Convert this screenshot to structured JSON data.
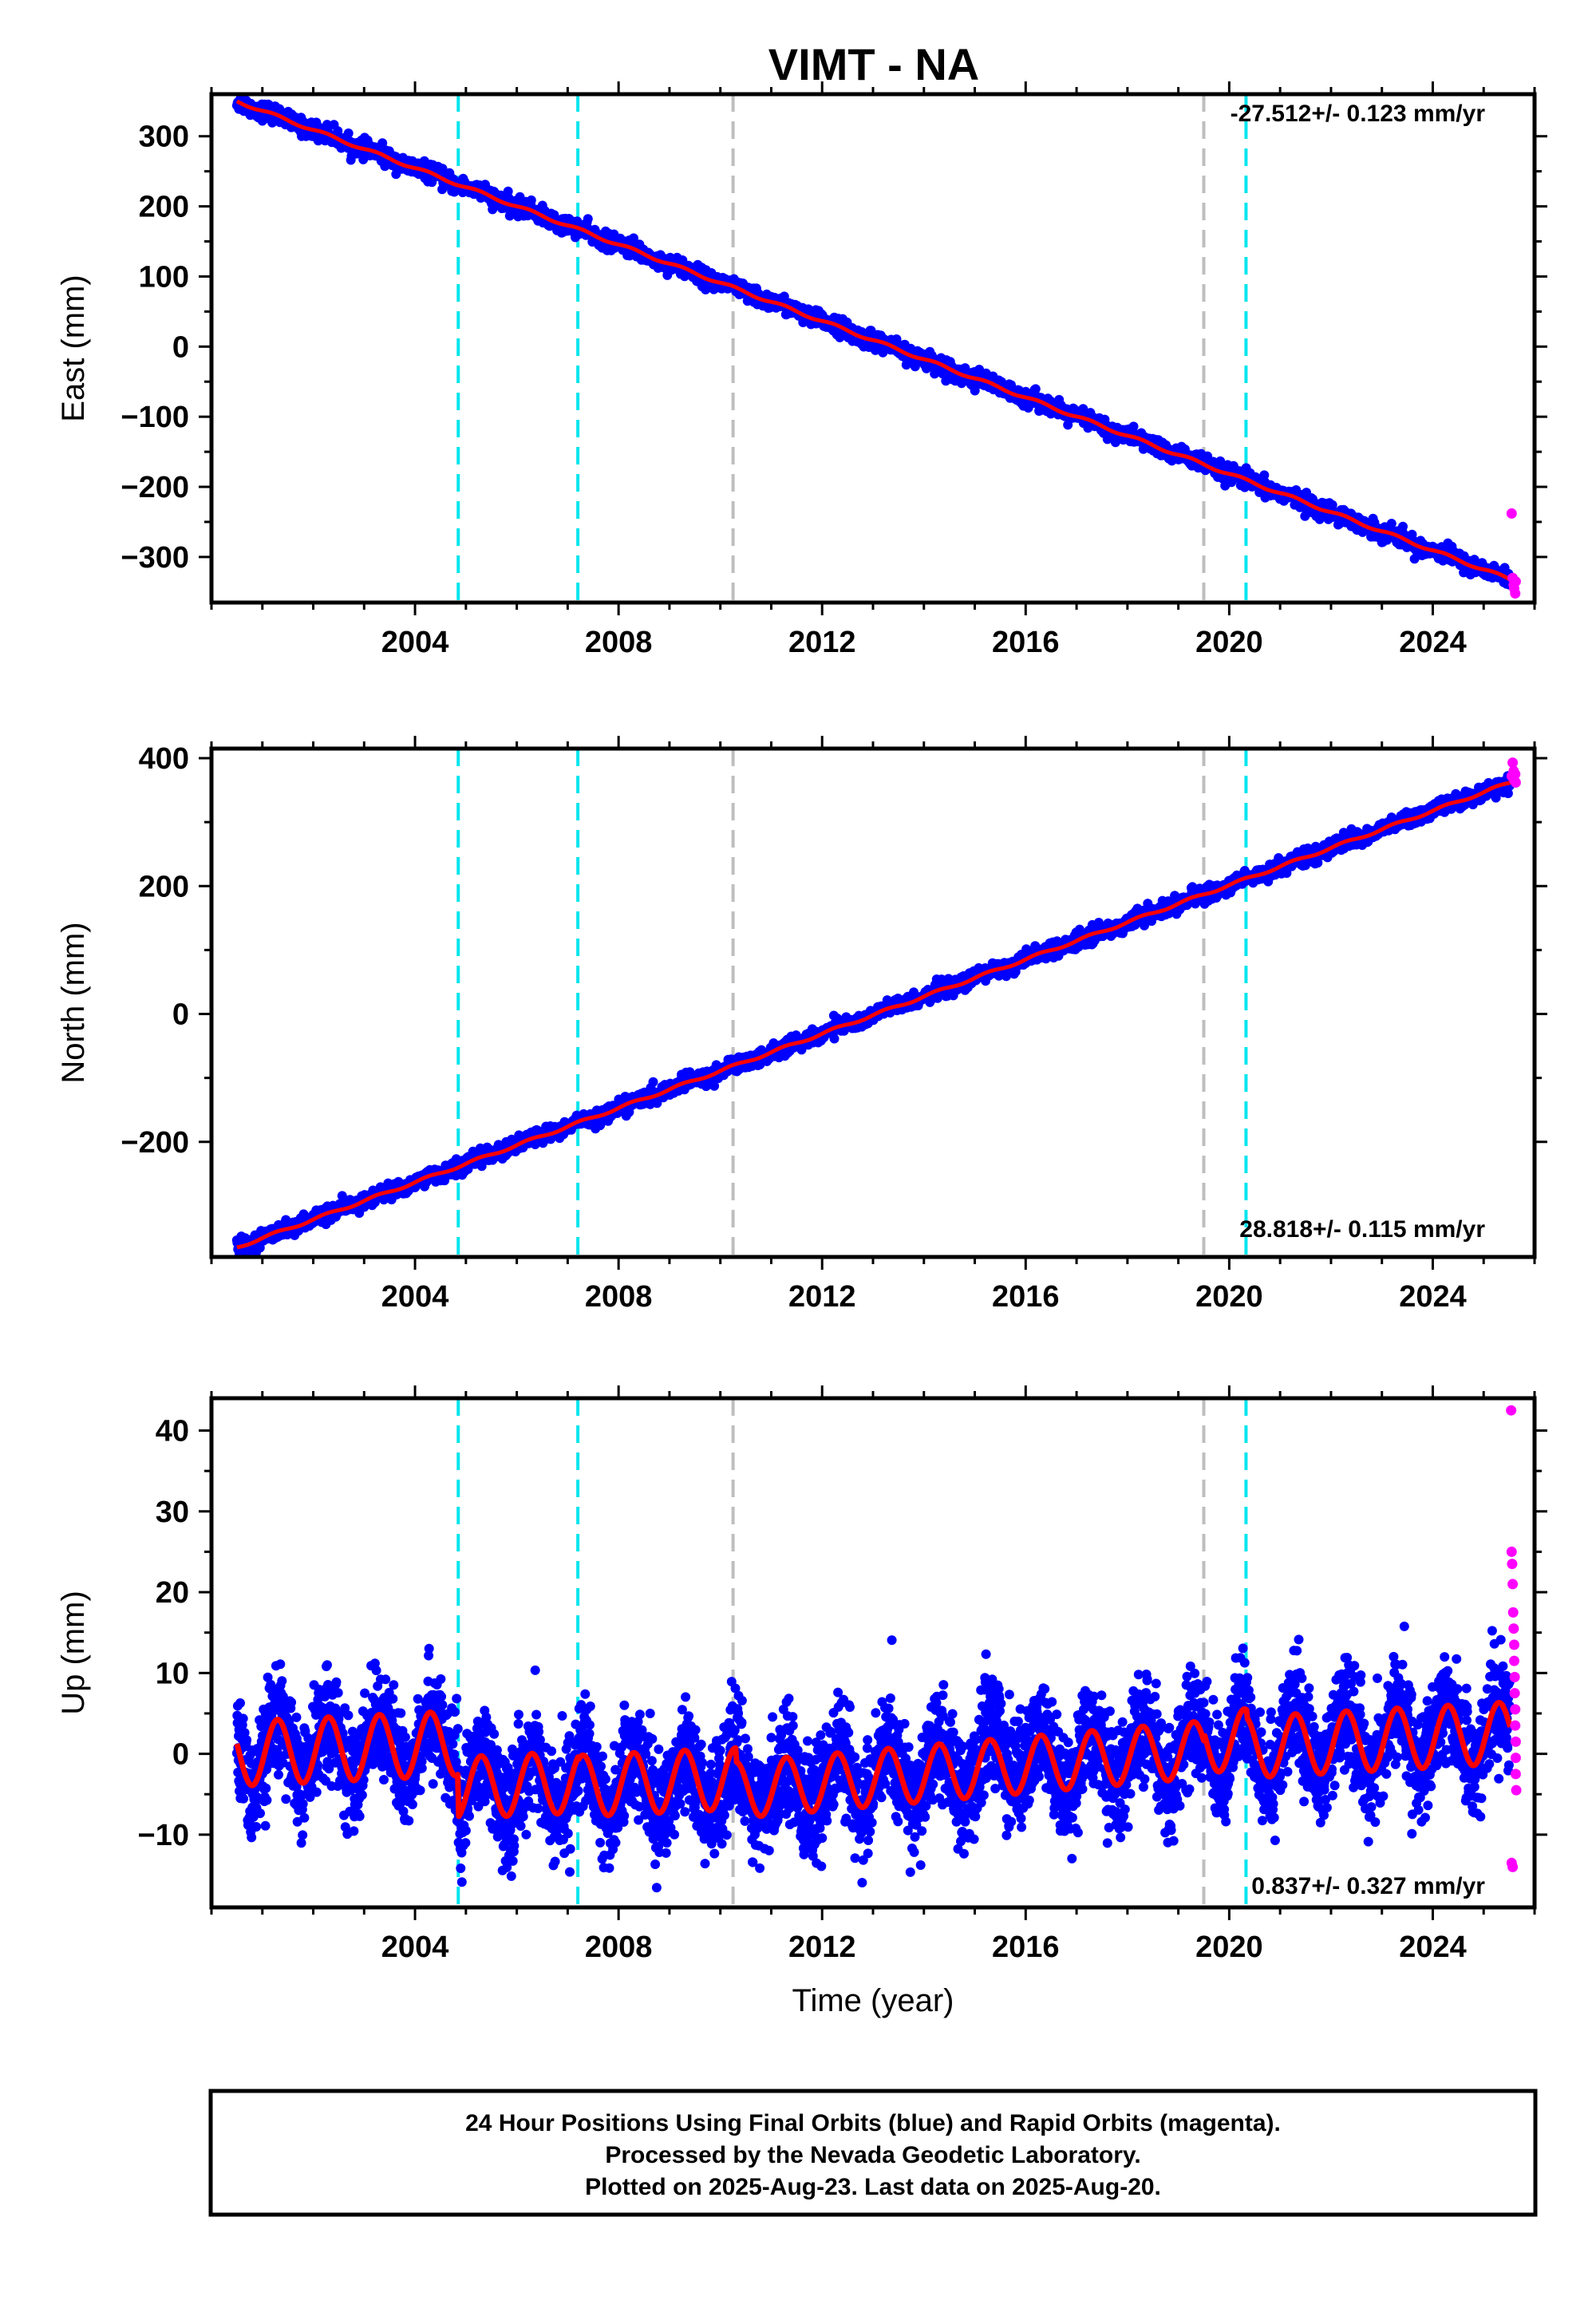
{
  "figure": {
    "title": "VIMT - NA",
    "footer": [
      "24 Hour Positions Using Final Orbits (blue) and Rapid Orbits (magenta).",
      "Processed by the Nevada Geodetic Laboratory.",
      "Plotted on 2025-Aug-23. Last data on 2025-Aug-20."
    ]
  },
  "colors": {
    "final_orbits": "#0000ff",
    "rapid_orbits": "#ff00ff",
    "model_fit": "#ff0000",
    "event_cyan": "#00e5ee",
    "event_gray": "#bebebe"
  },
  "chart_data": [
    {
      "type": "scatter",
      "ylabel": "East (mm)",
      "xlabel": "",
      "xlim": [
        2000.0,
        2026.0
      ],
      "ylim": [
        -365,
        360
      ],
      "x_ticks": [
        2004,
        2008,
        2012,
        2016,
        2020,
        2024
      ],
      "y_ticks": [
        -300,
        -200,
        -100,
        0,
        100,
        200,
        300
      ],
      "rate_label": "-27.512+/- 0.123 mm/yr",
      "rate_position": "top-right",
      "grid": false,
      "data_span": [
        2000.5,
        2025.63
      ],
      "trend": {
        "start": 350,
        "end": -335
      },
      "seasonal_amplitude": 2,
      "scatter_noise": 6,
      "rapid_points": [
        {
          "x": 2025.55,
          "y": -238
        },
        {
          "x": 2025.57,
          "y": -330
        },
        {
          "x": 2025.59,
          "y": -340
        },
        {
          "x": 2025.6,
          "y": -345
        },
        {
          "x": 2025.62,
          "y": -352
        },
        {
          "x": 2025.63,
          "y": -335
        }
      ],
      "series": [
        {
          "name": "Final Orbits (blue)"
        },
        {
          "name": "Rapid Orbits (magenta)"
        }
      ]
    },
    {
      "type": "scatter",
      "ylabel": "North (mm)",
      "xlabel": "",
      "xlim": [
        2000.0,
        2026.0
      ],
      "ylim": [
        -380,
        415
      ],
      "x_ticks": [
        2004,
        2008,
        2012,
        2016,
        2020,
        2024
      ],
      "y_ticks": [
        -200,
        0,
        200,
        400
      ],
      "rate_label": "28.818+/- 0.115 mm/yr",
      "rate_position": "bottom-right",
      "grid": false,
      "data_span": [
        2000.5,
        2025.63
      ],
      "trend": {
        "start": -365,
        "end": 365
      },
      "seasonal_amplitude": 2,
      "scatter_noise": 6,
      "rapid_points": [
        {
          "x": 2025.55,
          "y": 372
        },
        {
          "x": 2025.57,
          "y": 393
        },
        {
          "x": 2025.59,
          "y": 380
        },
        {
          "x": 2025.6,
          "y": 366
        },
        {
          "x": 2025.62,
          "y": 375
        },
        {
          "x": 2025.63,
          "y": 362
        }
      ],
      "series": [
        {
          "name": "Final Orbits (blue)"
        },
        {
          "name": "Rapid Orbits (magenta)"
        }
      ]
    },
    {
      "type": "scatter",
      "ylabel": "Up (mm)",
      "xlabel": "Time (year)",
      "xlim": [
        2000.0,
        2026.0
      ],
      "ylim": [
        -19,
        44
      ],
      "x_ticks": [
        2004,
        2008,
        2012,
        2016,
        2020,
        2024
      ],
      "y_ticks": [
        -10,
        0,
        10,
        20,
        30,
        40
      ],
      "rate_label": "0.837+/- 0.327 mm/yr",
      "rate_position": "bottom-right",
      "grid": false,
      "data_span": [
        2000.5,
        2025.63
      ],
      "model_segments": [
        {
          "start": 2000.5,
          "end": 2004.85,
          "offset": 0.0,
          "slope": 0.3,
          "amplitude": 4.0
        },
        {
          "start": 2004.85,
          "end": 2007.2,
          "offset": -4.2,
          "slope": 0.3,
          "amplitude": 3.8
        },
        {
          "start": 2007.2,
          "end": 2010.3,
          "offset": -4.0,
          "slope": 0.3,
          "amplitude": 3.8
        },
        {
          "start": 2010.3,
          "end": 2019.5,
          "offset": -4.5,
          "slope": 0.55,
          "amplitude": 3.5
        },
        {
          "start": 2019.5,
          "end": 2020.35,
          "offset": 1.5,
          "slope": 0.3,
          "amplitude": 3.8
        },
        {
          "start": 2020.35,
          "end": 2025.63,
          "offset": 0.8,
          "slope": 0.35,
          "amplitude": 3.8
        }
      ],
      "scatter_noise": 3.2,
      "rapid_points": [
        {
          "x": 2025.54,
          "y": 42.5
        },
        {
          "x": 2025.55,
          "y": 25
        },
        {
          "x": 2025.56,
          "y": 23.5
        },
        {
          "x": 2025.57,
          "y": 21
        },
        {
          "x": 2025.58,
          "y": 17.5
        },
        {
          "x": 2025.59,
          "y": 15.5
        },
        {
          "x": 2025.6,
          "y": 13.5
        },
        {
          "x": 2025.6,
          "y": 11.5
        },
        {
          "x": 2025.61,
          "y": 9.5
        },
        {
          "x": 2025.61,
          "y": 7.5
        },
        {
          "x": 2025.62,
          "y": 5.5
        },
        {
          "x": 2025.62,
          "y": 3.5
        },
        {
          "x": 2025.63,
          "y": 1.5
        },
        {
          "x": 2025.63,
          "y": -0.5
        },
        {
          "x": 2025.63,
          "y": -2.5
        },
        {
          "x": 2025.64,
          "y": -4.5
        },
        {
          "x": 2025.55,
          "y": -13.5
        },
        {
          "x": 2025.57,
          "y": -14
        }
      ],
      "series": [
        {
          "name": "Final Orbits (blue)"
        },
        {
          "name": "Rapid Orbits (magenta)"
        }
      ]
    }
  ],
  "event_lines": [
    {
      "x": 2004.85,
      "color": "cyan"
    },
    {
      "x": 2007.2,
      "color": "cyan"
    },
    {
      "x": 2010.25,
      "color": "gray"
    },
    {
      "x": 2019.5,
      "color": "gray"
    },
    {
      "x": 2020.33,
      "color": "cyan"
    }
  ]
}
